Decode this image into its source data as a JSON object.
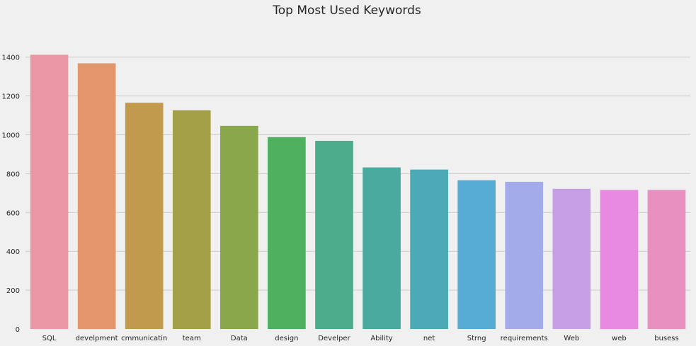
{
  "chart_data": {
    "type": "bar",
    "title": "Top Most Used Keywords",
    "xlabel": "",
    "ylabel": "",
    "categories": [
      "SQL",
      "develpment",
      "cmmunicatin",
      "team",
      "Data",
      "design",
      "Develper",
      "Ability",
      "net",
      "Strng",
      "requirements",
      "Web",
      "web",
      "busess"
    ],
    "values": [
      1412,
      1368,
      1165,
      1126,
      1046,
      988,
      969,
      832,
      821,
      766,
      758,
      722,
      716,
      716
    ],
    "colors": [
      "#ea96a3",
      "#e3956b",
      "#c19a4d",
      "#a3a048",
      "#88a84b",
      "#4fb05f",
      "#4dac8b",
      "#49ab9f",
      "#4baab6",
      "#56acd4",
      "#a3abe9",
      "#c79fe6",
      "#e88be0",
      "#e890c0"
    ],
    "ylim": [
      0,
      1460
    ],
    "yticks": [
      0,
      200,
      400,
      600,
      800,
      1000,
      1200,
      1400
    ],
    "grid": true,
    "legend": "none"
  }
}
